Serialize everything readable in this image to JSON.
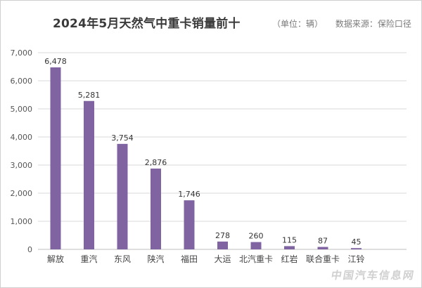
{
  "chart_data": {
    "type": "bar",
    "title": "2024年5月天然气中重卡销量前十",
    "unit_note": "（单位：辆）",
    "source_note": "数据来源：保险口径",
    "categories": [
      "解放",
      "重汽",
      "东风",
      "陕汽",
      "福田",
      "大运",
      "北汽重卡",
      "红岩",
      "联合重卡",
      "江铃"
    ],
    "values": [
      6478,
      5281,
      3754,
      2876,
      1746,
      278,
      260,
      115,
      87,
      45
    ],
    "value_labels": [
      "6,478",
      "5,281",
      "3,754",
      "2,876",
      "1,746",
      "278",
      "260",
      "115",
      "87",
      "45"
    ],
    "ylim": [
      0,
      7000
    ],
    "yticks": [
      0,
      1000,
      2000,
      3000,
      4000,
      5000,
      6000,
      7000
    ],
    "ytick_labels": [
      "0",
      "1,000",
      "2,000",
      "3,000",
      "4,000",
      "5,000",
      "6,000",
      "7,000"
    ],
    "xlabel": "",
    "ylabel": "",
    "grid": true,
    "legend": "none",
    "bar_color": "#8064a2",
    "grid_color": "#d9d9d9"
  },
  "watermark": "中国汽车信息网"
}
